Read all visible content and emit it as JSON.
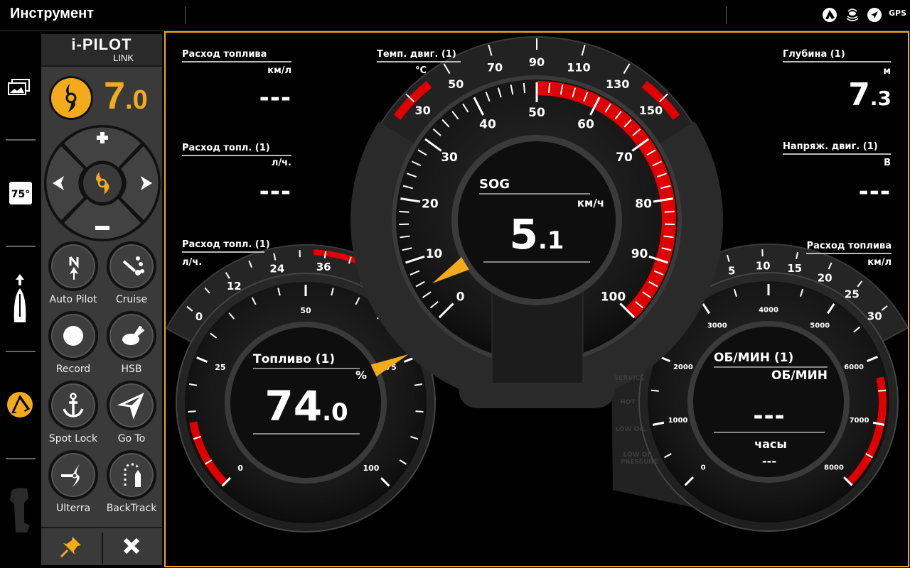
{
  "topbar": {
    "title": "Инструмент",
    "icons": [
      "humminbird-logo-icon",
      "sonar-icon",
      "navigation-arrow-icon",
      "gps-icon"
    ],
    "gps_label": "GPS"
  },
  "sidebar": {
    "items": [
      "gallery-icon",
      "temperature-75-icon",
      "boat-heading-icon",
      "humminbird-logo-icon",
      "outboard-motor-icon"
    ],
    "temp_badge": "75°",
    "active_color": "#f3ab1c"
  },
  "ipilot": {
    "brand": "i-PILOT",
    "sub": "LINK",
    "speed_int": "7",
    "speed_dec": ".0",
    "buttons": [
      {
        "label": "Auto Pilot",
        "icon": "autopilot-north-icon"
      },
      {
        "label": "Cruise",
        "icon": "cruise-icon"
      },
      {
        "label": "Record",
        "icon": "record-icon"
      },
      {
        "label": "HSB",
        "icon": "hsb-rabbit-icon"
      },
      {
        "label": "Spot Lock",
        "icon": "anchor-icon"
      },
      {
        "label": "Go To",
        "icon": "goto-arrow-icon"
      },
      {
        "label": "Ulterra",
        "icon": "ulterra-icon"
      },
      {
        "label": "BackTrack",
        "icon": "backtrack-icon"
      }
    ],
    "accent": "#f3ab1c"
  },
  "readouts": {
    "fuel_economy": {
      "label": "Расход топлива",
      "unit": "км/л",
      "value": "---"
    },
    "fuel_rate": {
      "label": "Расход топл. (1)",
      "unit": "л/ч.",
      "value": "---"
    },
    "fuel_rate_gauge": {
      "label": "Расход топл. (1)",
      "unit": "л/ч."
    },
    "depth": {
      "label": "Глубина (1)",
      "unit": "м",
      "value_int": "7",
      "value_dec": ".3"
    },
    "voltage": {
      "label": "Напряж. двиг. (1)",
      "unit": "В",
      "value": "---"
    },
    "fuel_economy_gauge": {
      "label": "Расход топлива",
      "unit": "км/л"
    }
  },
  "gauges": {
    "speed": {
      "label": "SOG",
      "unit": "км/ч",
      "value": 5.1,
      "value_int": "5",
      "value_dec": ".1",
      "scale": {
        "min": 0,
        "max": 100,
        "label_step": 10,
        "minor_step": 2
      },
      "red_zone": [
        50,
        100
      ]
    },
    "temp": {
      "label": "Темп. двиг. (1)",
      "unit": "°C",
      "scale": {
        "min": 30,
        "max": 150,
        "label_step": 20
      },
      "red_zones": [
        [
          20,
          40
        ],
        [
          140,
          160
        ]
      ]
    },
    "fuel": {
      "label": "Топливо (1)",
      "unit": "%",
      "value": 74.0,
      "value_int": "74",
      "value_dec": ".0",
      "scale": {
        "min": 0,
        "max": 100,
        "label_step": 25,
        "minor_step": 5
      },
      "red_zone": [
        0,
        13
      ]
    },
    "fuel_rate_outer": {
      "scale": {
        "min": 0,
        "max": 48,
        "label_step": 12
      }
    },
    "rpm": {
      "label": "ОБ/МИН (1)",
      "unit": "ОБ/МИН",
      "value": "---",
      "hours_label": "часы",
      "hours_value": "---",
      "scale": {
        "min": 0,
        "max": 8000,
        "label_step": 1000,
        "minor_step": 500
      },
      "red_zone": [
        6300,
        8000
      ],
      "warnings": [
        "SERVICE",
        "HOT",
        "LOW OIL",
        "LOW OIL PRESSURE"
      ]
    },
    "fuel_economy_outer": {
      "scale": {
        "min": 0,
        "max": 30,
        "label_step": 5
      }
    },
    "needle_color": "#f3ab1c",
    "red_color": "#e00000"
  }
}
